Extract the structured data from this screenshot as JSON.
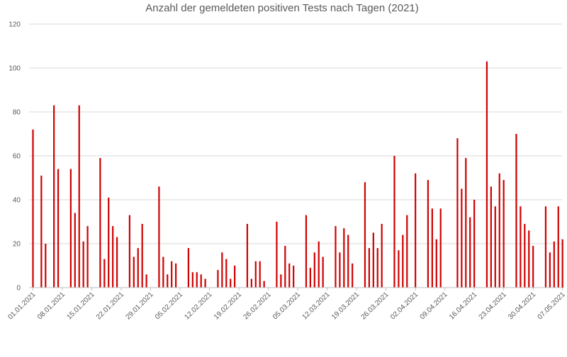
{
  "chart_data": {
    "type": "bar",
    "title": "Anzahl der gemeldeten positiven Tests nach Tagen (2021)",
    "xlabel": "",
    "ylabel": "",
    "ylim": [
      0,
      120
    ],
    "yticks": [
      "0",
      "20",
      "40",
      "60",
      "80",
      "100",
      "120"
    ],
    "grid": true,
    "bar_color": "#d00000",
    "start_date": "2021-01-01",
    "x_tick_labels": [
      "01.01.2021",
      "08.01.2021",
      "15.01.2021",
      "22.01.2021",
      "29.01.2021",
      "05.02.2021",
      "12.02.2021",
      "19.02.2021",
      "26.02.2021",
      "05.03.2021",
      "12.03.2021",
      "19.03.2021",
      "26.03.2021",
      "02.04.2021",
      "09.04.2021",
      "16.04.2021",
      "23.04.2021",
      "30.04.2021",
      "07.05.2021"
    ],
    "values": [
      72,
      0,
      51,
      20,
      0,
      83,
      54,
      0,
      0,
      54,
      34,
      83,
      21,
      28,
      0,
      0,
      59,
      13,
      41,
      28,
      23,
      0,
      0,
      33,
      14,
      18,
      29,
      6,
      0,
      0,
      46,
      14,
      6,
      12,
      11,
      0,
      0,
      18,
      7,
      7,
      6,
      4,
      0,
      0,
      8,
      16,
      13,
      4,
      10,
      0,
      0,
      29,
      4,
      12,
      12,
      3,
      0,
      0,
      30,
      6,
      19,
      11,
      10,
      0,
      0,
      33,
      9,
      16,
      21,
      14,
      0,
      0,
      28,
      16,
      27,
      24,
      11,
      0,
      0,
      48,
      18,
      25,
      18,
      29,
      0,
      0,
      60,
      17,
      24,
      33,
      0,
      52,
      0,
      0,
      49,
      36,
      22,
      36,
      0,
      0,
      0,
      68,
      45,
      59,
      32,
      40,
      0,
      0,
      103,
      46,
      37,
      52,
      49,
      0,
      0,
      70,
      37,
      29,
      26,
      19,
      0,
      0,
      37,
      16,
      21,
      37,
      22
    ]
  }
}
